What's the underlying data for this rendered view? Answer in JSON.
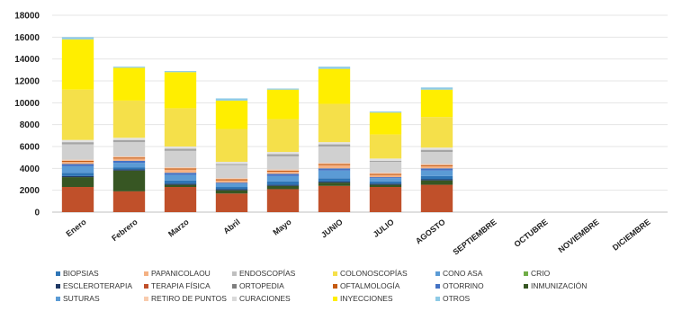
{
  "chart_data": {
    "type": "bar",
    "stacked": true,
    "title": "",
    "xlabel": "",
    "ylabel": "",
    "ylim": [
      0,
      18000
    ],
    "yticks": [
      0,
      2000,
      4000,
      6000,
      8000,
      10000,
      12000,
      14000,
      16000,
      18000
    ],
    "ytick_labels": [
      "0",
      "2000",
      "4000",
      "6000",
      "8000",
      "10000",
      "12000",
      "14000",
      "16000",
      "18000"
    ],
    "grid": true,
    "legend_position": "bottom",
    "categories": [
      "Enero",
      "Febrero",
      "Marzo",
      "Abril",
      "Mayo",
      "JUNIO",
      "JULIO",
      "AGOSTO",
      "SEPTIEMBRE",
      "OCTUBRE",
      "NOVIEMBRE",
      "DICIEMBRE"
    ],
    "series": [
      {
        "name": "TERAPIA FÍSICA",
        "color": "#c0502a",
        "values": [
          2300,
          1900,
          2300,
          1700,
          2100,
          2400,
          2300,
          2500,
          0,
          0,
          0,
          0
        ]
      },
      {
        "name": "INMUNIZACIÓN",
        "color": "#375623",
        "values": [
          900,
          1900,
          200,
          300,
          300,
          300,
          200,
          400,
          0,
          0,
          0,
          0
        ]
      },
      {
        "name": "ESCLEROTERAPIA",
        "color": "#1f3864",
        "values": [
          100,
          100,
          100,
          100,
          100,
          100,
          100,
          100,
          0,
          0,
          0,
          0
        ]
      },
      {
        "name": "BIOPSIAS",
        "color": "#2e75b6",
        "values": [
          300,
          200,
          300,
          200,
          300,
          300,
          200,
          300,
          0,
          0,
          0,
          0
        ]
      },
      {
        "name": "CONO ASA",
        "color": "#5b9bd5",
        "values": [
          600,
          400,
          500,
          300,
          500,
          700,
          300,
          500,
          0,
          0,
          0,
          0
        ]
      },
      {
        "name": "OTORRINO",
        "color": "#4472c4",
        "values": [
          200,
          200,
          200,
          100,
          200,
          200,
          100,
          200,
          0,
          0,
          0,
          0
        ]
      },
      {
        "name": "PAPANICOLAOU",
        "color": "#f4b183",
        "values": [
          200,
          200,
          300,
          200,
          200,
          300,
          200,
          200,
          0,
          0,
          0,
          0
        ]
      },
      {
        "name": "OFTALMOLOGÍA",
        "color": "#c55a11",
        "values": [
          100,
          100,
          100,
          100,
          100,
          100,
          100,
          100,
          0,
          0,
          0,
          0
        ]
      },
      {
        "name": "RETIRO DE PUNTOS",
        "color": "#f8cbad",
        "values": [
          100,
          100,
          100,
          100,
          100,
          100,
          100,
          100,
          0,
          0,
          0,
          0
        ]
      },
      {
        "name": "ENDOSCOPÍAS",
        "color": "#d0d0d0",
        "values": [
          1400,
          1300,
          1500,
          1200,
          1200,
          1500,
          1000,
          1100,
          0,
          0,
          0,
          0
        ]
      },
      {
        "name": "ORTOPEDIA",
        "color": "#a5a5a5",
        "values": [
          200,
          200,
          200,
          100,
          200,
          200,
          100,
          200,
          0,
          0,
          0,
          0
        ]
      },
      {
        "name": "CURACIONES",
        "color": "#e2e2e2",
        "values": [
          200,
          200,
          200,
          200,
          200,
          200,
          200,
          200,
          0,
          0,
          0,
          0
        ]
      },
      {
        "name": "COLONOSCOPÍAS",
        "color": "#f5e04a",
        "values": [
          4600,
          3400,
          3500,
          3000,
          3000,
          3500,
          2200,
          2800,
          0,
          0,
          0,
          0
        ]
      },
      {
        "name": "INYECCIONES",
        "color": "#ffee00",
        "values": [
          4600,
          3000,
          3300,
          2600,
          2700,
          3200,
          2000,
          2500,
          0,
          0,
          0,
          0
        ]
      },
      {
        "name": "CRIO",
        "color": "#70ad47",
        "values": [
          0,
          0,
          0,
          0,
          0,
          0,
          0,
          0,
          0,
          0,
          0,
          0
        ]
      },
      {
        "name": "SUTURAS",
        "color": "#5b9bd5",
        "values": [
          0,
          0,
          0,
          0,
          0,
          0,
          0,
          0,
          0,
          0,
          0,
          0
        ]
      },
      {
        "name": "OTROS",
        "color": "#8ecae6",
        "values": [
          200,
          100,
          100,
          200,
          100,
          200,
          100,
          200,
          0,
          0,
          0,
          0
        ]
      }
    ],
    "legend": [
      {
        "name": "BIOPSIAS",
        "color": "#2e75b6"
      },
      {
        "name": "PAPANICOLAOU",
        "color": "#f4b183"
      },
      {
        "name": "ENDOSCOPÍAS",
        "color": "#bfbfbf"
      },
      {
        "name": "COLONOSCOPÍAS",
        "color": "#f5e04a"
      },
      {
        "name": "CONO ASA",
        "color": "#5b9bd5"
      },
      {
        "name": "CRIO",
        "color": "#70ad47"
      },
      {
        "name": "ESCLEROTERAPIA",
        "color": "#1f3864"
      },
      {
        "name": "TERAPIA FÍSICA",
        "color": "#c0502a"
      },
      {
        "name": "ORTOPEDIA",
        "color": "#7f7f7f"
      },
      {
        "name": "OFTALMOLOGÍA",
        "color": "#c55a11"
      },
      {
        "name": "OTORRINO",
        "color": "#4472c4"
      },
      {
        "name": "INMUNIZACIÓN",
        "color": "#375623"
      },
      {
        "name": "SUTURAS",
        "color": "#5b9bd5"
      },
      {
        "name": "RETIRO DE PUNTOS",
        "color": "#f8cbad"
      },
      {
        "name": "CURACIONES",
        "color": "#d9d9d9"
      },
      {
        "name": "INYECCIONES",
        "color": "#ffee00"
      },
      {
        "name": "OTROS",
        "color": "#8ecae6"
      }
    ]
  }
}
